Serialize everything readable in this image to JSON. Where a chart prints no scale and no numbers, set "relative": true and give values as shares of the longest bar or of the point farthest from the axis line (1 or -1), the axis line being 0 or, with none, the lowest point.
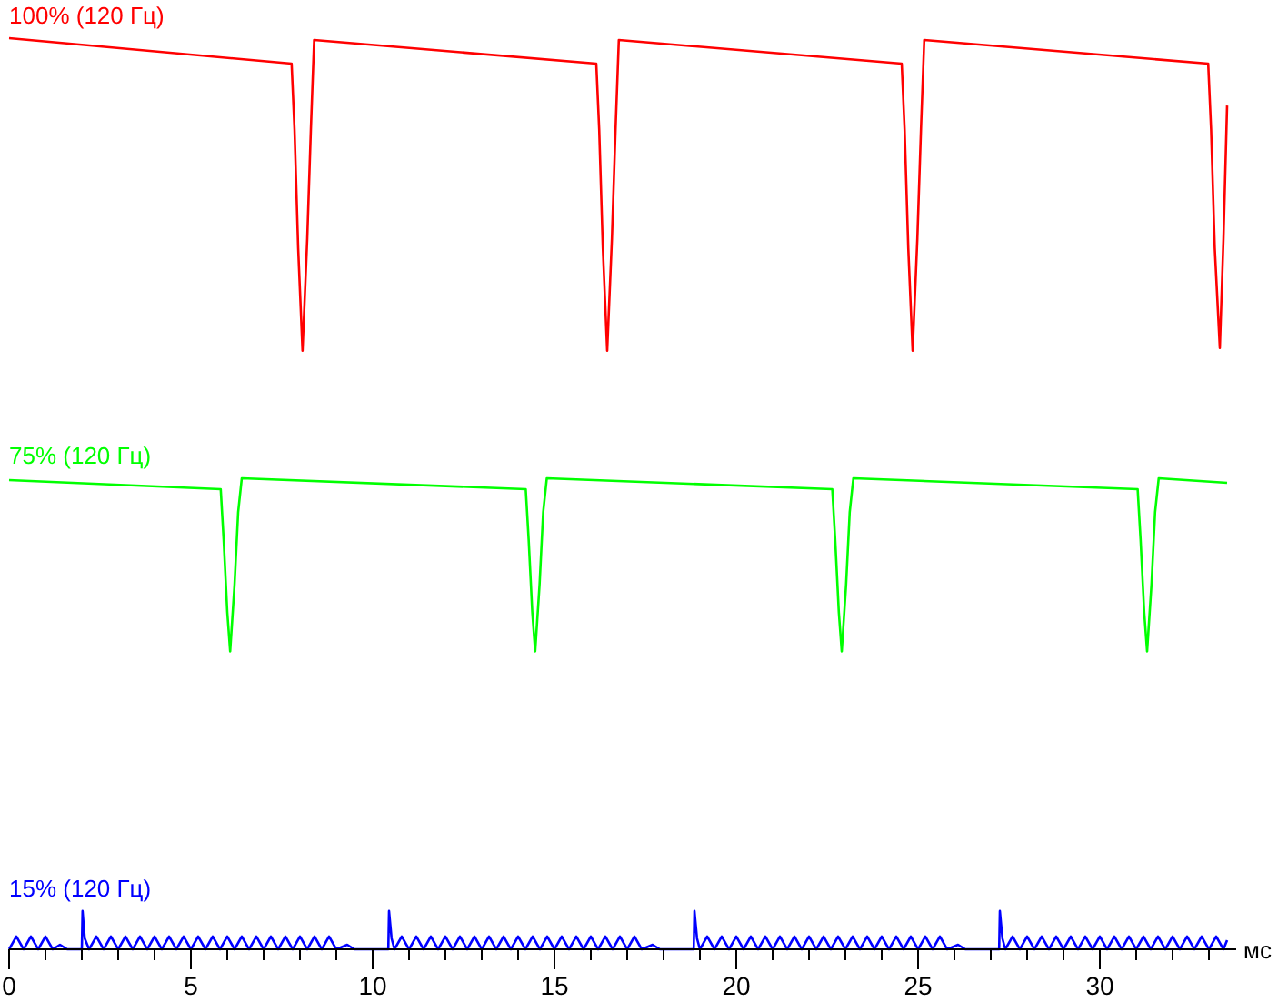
{
  "chart_data": {
    "type": "line",
    "relative": true,
    "legend": false,
    "grid": false,
    "xlabel": "мс",
    "xlim": [
      0,
      33.75
    ],
    "xticks": [
      0,
      {
        "value": 1,
        "label": null
      },
      {
        "value": 2,
        "label": null
      },
      {
        "value": 3,
        "label": null
      },
      {
        "value": 4,
        "label": null
      },
      5,
      {
        "value": 6,
        "label": null
      },
      {
        "value": 7,
        "label": null
      },
      {
        "value": 8,
        "label": null
      },
      {
        "value": 9,
        "label": null
      },
      10,
      {
        "value": 11,
        "label": null
      },
      {
        "value": 12,
        "label": null
      },
      {
        "value": 13,
        "label": null
      },
      {
        "value": 14,
        "label": null
      },
      15,
      {
        "value": 16,
        "label": null
      },
      {
        "value": 17,
        "label": null
      },
      {
        "value": 18,
        "label": null
      },
      {
        "value": 19,
        "label": null
      },
      20,
      {
        "value": 21,
        "label": null
      },
      {
        "value": 22,
        "label": null
      },
      {
        "value": 23,
        "label": null
      },
      {
        "value": 24,
        "label": null
      },
      25,
      {
        "value": 26,
        "label": null
      },
      {
        "value": 27,
        "label": null
      },
      {
        "value": 28,
        "label": null
      },
      {
        "value": 29,
        "label": null
      },
      30,
      {
        "value": 31,
        "label": null
      },
      {
        "value": 32,
        "label": null
      },
      {
        "value": 33,
        "label": null
      }
    ],
    "series": [
      {
        "name": "100% (120 Гц)",
        "color": "#ff0000",
        "x": [
          0,
          7.77,
          7.85,
          7.95,
          8.07,
          8.2,
          8.3,
          8.39,
          16.15,
          16.23,
          16.33,
          16.45,
          16.58,
          16.68,
          16.77,
          24.55,
          24.63,
          24.73,
          24.85,
          24.98,
          25.08,
          25.17,
          32.98,
          33.06,
          33.16,
          33.3,
          33.4,
          33.5
        ],
        "values": [
          1,
          0.972,
          0.9,
          0.77,
          0.657,
          0.78,
          0.9,
          0.998,
          0.972,
          0.9,
          0.77,
          0.657,
          0.78,
          0.9,
          0.998,
          0.972,
          0.9,
          0.77,
          0.657,
          0.78,
          0.9,
          0.998,
          0.972,
          0.9,
          0.77,
          0.66,
          0.78,
          0.926
        ]
      },
      {
        "name": "75% (120 Гц)",
        "color": "#00ff00",
        "x": [
          0,
          5.82,
          5.9,
          6.0,
          6.08,
          6.2,
          6.3,
          6.4,
          14.21,
          14.29,
          14.39,
          14.47,
          14.59,
          14.69,
          14.79,
          22.64,
          22.72,
          22.82,
          22.9,
          23.02,
          23.12,
          23.22,
          31.04,
          31.12,
          31.22,
          31.3,
          31.42,
          31.52,
          31.62,
          33.5
        ],
        "values": [
          0.515,
          0.505,
          0.45,
          0.37,
          0.327,
          0.4,
          0.48,
          0.517,
          0.505,
          0.45,
          0.37,
          0.327,
          0.4,
          0.48,
          0.517,
          0.505,
          0.45,
          0.37,
          0.327,
          0.4,
          0.48,
          0.517,
          0.505,
          0.45,
          0.37,
          0.327,
          0.4,
          0.48,
          0.517,
          0.512
        ]
      },
      {
        "name": "15% (120 Гц)",
        "color": "#0000ff",
        "x": [
          0,
          0.2,
          0.4,
          0.6,
          0.8,
          1.0,
          1.2,
          1.4,
          1.6,
          2.0,
          2.02,
          2.08,
          2.2,
          2.4,
          2.6,
          2.8,
          3.0,
          3.2,
          3.4,
          3.6,
          3.8,
          4.0,
          4.2,
          4.4,
          4.6,
          4.8,
          5.0,
          5.2,
          5.4,
          5.6,
          5.8,
          6.0,
          6.2,
          6.4,
          6.6,
          6.8,
          7.0,
          7.2,
          7.4,
          7.6,
          7.8,
          8.0,
          8.2,
          8.4,
          8.6,
          8.8,
          9.0,
          9.3,
          9.5,
          10.43,
          10.45,
          10.52,
          10.6,
          10.8,
          11.0,
          11.2,
          11.4,
          11.6,
          11.8,
          12.0,
          12.2,
          12.4,
          12.6,
          12.8,
          13.0,
          13.2,
          13.4,
          13.6,
          13.8,
          14.0,
          14.2,
          14.4,
          14.6,
          14.8,
          15.0,
          15.2,
          15.4,
          15.6,
          15.8,
          16.0,
          16.2,
          16.4,
          16.6,
          16.8,
          17.0,
          17.2,
          17.4,
          17.7,
          17.9,
          18.83,
          18.85,
          18.92,
          19.0,
          19.2,
          19.4,
          19.6,
          19.8,
          20.0,
          20.2,
          20.4,
          20.6,
          20.8,
          21.0,
          21.2,
          21.4,
          21.6,
          21.8,
          22.0,
          22.2,
          22.4,
          22.6,
          22.8,
          23.0,
          23.2,
          23.4,
          23.6,
          23.8,
          24.0,
          24.2,
          24.4,
          24.6,
          24.8,
          25.0,
          25.2,
          25.4,
          25.6,
          25.8,
          26.1,
          26.3,
          27.23,
          27.25,
          27.32,
          27.4,
          27.6,
          27.8,
          28.0,
          28.2,
          28.4,
          28.6,
          28.8,
          29.0,
          29.2,
          29.4,
          29.6,
          29.8,
          30.0,
          30.2,
          30.4,
          30.6,
          30.8,
          31.0,
          31.2,
          31.4,
          31.6,
          31.8,
          32.0,
          32.2,
          32.4,
          32.6,
          32.8,
          33.0,
          33.2,
          33.4,
          33.5
        ],
        "values": [
          0,
          0.014,
          0,
          0.014,
          0,
          0.014,
          0,
          0.005,
          0,
          0,
          0.042,
          0.012,
          0,
          0.014,
          0,
          0.014,
          0,
          0.014,
          0,
          0.014,
          0,
          0.014,
          0,
          0.014,
          0,
          0.014,
          0,
          0.014,
          0,
          0.014,
          0,
          0.014,
          0,
          0.014,
          0,
          0.014,
          0,
          0.014,
          0,
          0.014,
          0,
          0.014,
          0,
          0.014,
          0,
          0.014,
          0,
          0.005,
          0,
          0,
          0.042,
          0.012,
          0,
          0.014,
          0,
          0.014,
          0,
          0.014,
          0,
          0.014,
          0,
          0.014,
          0,
          0.014,
          0,
          0.014,
          0,
          0.014,
          0,
          0.014,
          0,
          0.014,
          0,
          0.014,
          0,
          0.014,
          0,
          0.014,
          0,
          0.014,
          0,
          0.014,
          0,
          0.014,
          0,
          0.014,
          0,
          0.005,
          0,
          0,
          0.042,
          0.012,
          0,
          0.014,
          0,
          0.014,
          0,
          0.014,
          0,
          0.014,
          0,
          0.014,
          0,
          0.014,
          0,
          0.014,
          0,
          0.014,
          0,
          0.014,
          0,
          0.014,
          0,
          0.014,
          0,
          0.014,
          0,
          0.014,
          0,
          0.014,
          0,
          0.014,
          0,
          0.014,
          0,
          0.014,
          0,
          0.005,
          0,
          0,
          0.042,
          0.012,
          0,
          0.014,
          0,
          0.014,
          0,
          0.014,
          0,
          0.014,
          0,
          0.014,
          0,
          0.014,
          0,
          0.014,
          0,
          0.014,
          0,
          0.014,
          0,
          0.014,
          0,
          0.014,
          0,
          0.014,
          0,
          0.014,
          0,
          0.014,
          0,
          0.014,
          0,
          0.01
        ]
      }
    ]
  }
}
